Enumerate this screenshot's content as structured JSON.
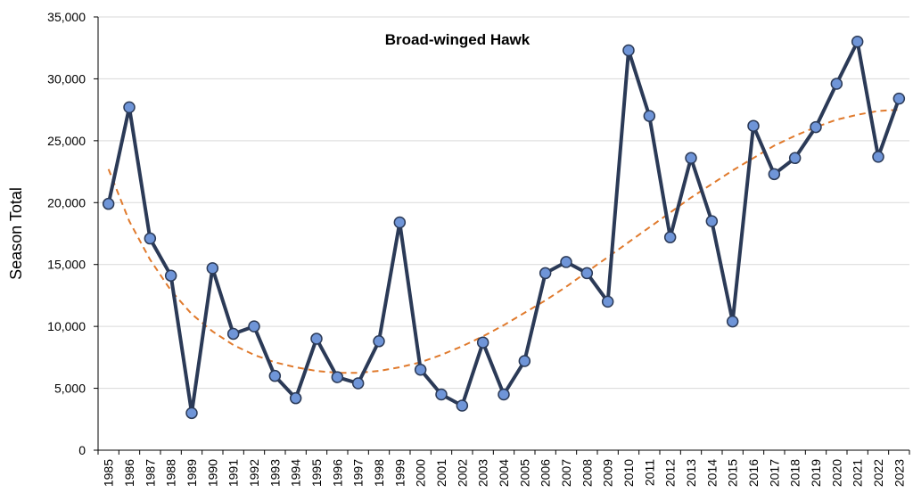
{
  "chart_data": {
    "type": "line",
    "title": "Broad-winged Hawk",
    "xlabel": "",
    "ylabel": "Season Total",
    "ylim": [
      0,
      35000
    ],
    "yticks": [
      0,
      5000,
      10000,
      15000,
      20000,
      25000,
      30000,
      35000
    ],
    "ytick_labels": [
      "0",
      "5,000",
      "10,000",
      "15,000",
      "20,000",
      "25,000",
      "30,000",
      "35,000"
    ],
    "grid": "horizontal",
    "legend": "none",
    "categories": [
      "1985",
      "1986",
      "1987",
      "1988",
      "1989",
      "1990",
      "1991",
      "1992",
      "1993",
      "1994",
      "1995",
      "1996",
      "1997",
      "1998",
      "1999",
      "2000",
      "2001",
      "2002",
      "2003",
      "2004",
      "2005",
      "2006",
      "2007",
      "2008",
      "2009",
      "2010",
      "2011",
      "2012",
      "2013",
      "2014",
      "2015",
      "2016",
      "2017",
      "2018",
      "2019",
      "2020",
      "2021",
      "2022",
      "2023"
    ],
    "series": [
      {
        "style": "solid line with circle markers",
        "line_color": "#2b3a57",
        "marker_color": "#6f95d8",
        "values": [
          19900,
          27700,
          17100,
          14100,
          3000,
          14700,
          9400,
          10000,
          6000,
          4200,
          9000,
          5900,
          5400,
          8800,
          18400,
          6500,
          4500,
          3600,
          8700,
          4500,
          7200,
          14300,
          15200,
          14300,
          12000,
          32300,
          27000,
          17200,
          23600,
          18500,
          10400,
          26200,
          22300,
          23600,
          26100,
          29600,
          33000,
          23700,
          28400
        ]
      },
      {
        "style": "dashed trend line",
        "line_color": "#e07a2d",
        "values": [
          22700,
          18500,
          15400,
          12900,
          11000,
          9600,
          8500,
          7700,
          7100,
          6700,
          6400,
          6250,
          6250,
          6400,
          6700,
          7100,
          7700,
          8400,
          9200,
          10100,
          11100,
          12100,
          13200,
          14400,
          15600,
          16800,
          18000,
          19200,
          20400,
          21500,
          22600,
          23600,
          24600,
          25400,
          26100,
          26700,
          27100,
          27400,
          27500
        ]
      }
    ]
  }
}
